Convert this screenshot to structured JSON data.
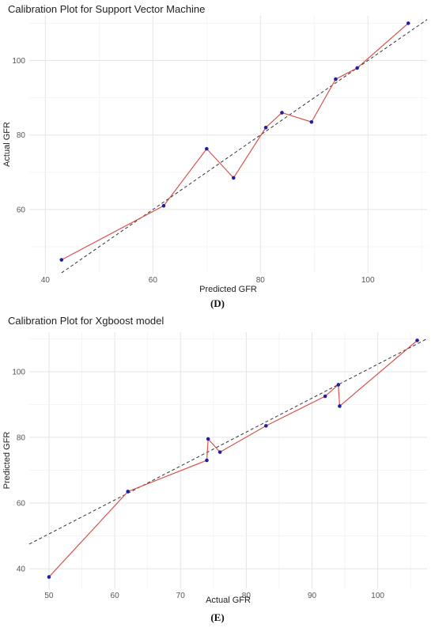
{
  "chart_data": [
    {
      "type": "line",
      "title": "Calibration Plot for Support Vector Machine",
      "xlabel": "Predicted GFR",
      "ylabel": "Actual GFR",
      "caption": "(D)",
      "xlim": [
        37,
        111
      ],
      "ylim": [
        43,
        112
      ],
      "x_ticks": [
        40,
        60,
        80,
        100
      ],
      "y_ticks": [
        60,
        80,
        100
      ],
      "series": [
        {
          "x": [
            43,
            62,
            70,
            75,
            81,
            84,
            89.5,
            94,
            98,
            107.5
          ],
          "y": [
            46.5,
            61,
            76.3,
            68.5,
            82,
            86,
            83.5,
            95,
            98,
            110
          ]
        }
      ],
      "reference_line": {
        "x": [
          43,
          111
        ],
        "y": [
          43,
          111
        ]
      },
      "colors": {
        "line": "#d9534f",
        "point": "#1f1fa0",
        "reference": "#333333"
      },
      "grid": true
    },
    {
      "type": "line",
      "title": "Calibration Plot for Xgboost model",
      "xlabel": "Actual GFR",
      "ylabel": "Predicted GFR",
      "caption": "(E)",
      "xlim": [
        47,
        107.5
      ],
      "ylim": [
        34,
        112
      ],
      "x_ticks": [
        50,
        60,
        70,
        80,
        90,
        100
      ],
      "y_ticks": [
        40,
        60,
        80,
        100
      ],
      "series": [
        {
          "x": [
            50,
            62,
            74,
            74.2,
            76,
            83,
            92,
            94,
            94.2,
            106
          ],
          "y": [
            37.5,
            63.5,
            73,
            79.5,
            75.5,
            83.5,
            92.5,
            96,
            89.5,
            109.5
          ]
        }
      ],
      "reference_line": {
        "x": [
          47,
          107.5
        ],
        "y": [
          47.5,
          110
        ]
      },
      "colors": {
        "line": "#d9534f",
        "point": "#1f1fa0",
        "reference": "#333333"
      },
      "grid": true
    }
  ]
}
